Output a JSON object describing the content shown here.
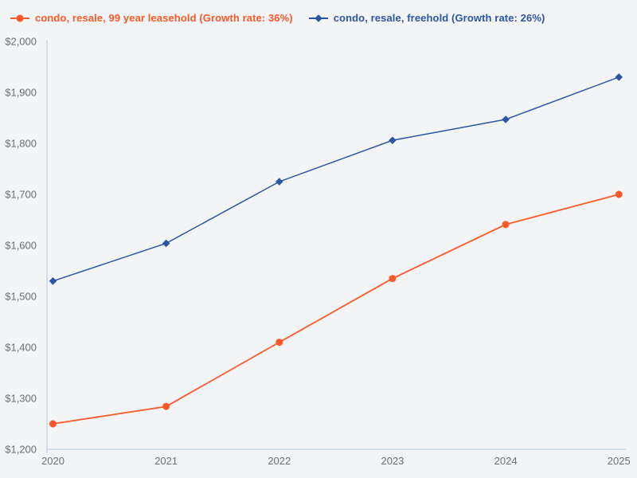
{
  "page": {
    "background": "#f3f4f6"
  },
  "chart_data": {
    "type": "line",
    "title": "",
    "xlabel": "",
    "ylabel": "",
    "categories": [
      "2020",
      "2021",
      "2022",
      "2023",
      "2024",
      "2025"
    ],
    "series": [
      {
        "id": "leasehold",
        "name": "condo, resale, 99 year leasehold (Growth rate: 36%)",
        "values": [
          1250,
          1284,
          1410,
          1535,
          1641,
          1700
        ],
        "color": "#fb5a28",
        "marker": "circle"
      },
      {
        "id": "freehold",
        "name": "condo, resale, freehold (Growth rate: 26%)",
        "values": [
          1530,
          1604,
          1725,
          1806,
          1847,
          1930
        ],
        "color": "#2a56a4",
        "marker": "diamond"
      }
    ],
    "ylim": [
      1200,
      2000
    ],
    "ytick_step": 100,
    "ytick_labels": [
      "$1,200",
      "$1,300",
      "$1,400",
      "$1,500",
      "$1,600",
      "$1,700",
      "$1,800",
      "$1,900",
      "$2,000"
    ],
    "grid": false,
    "legend_position": "top-left",
    "axis_color": "#c6d0e6",
    "tick_label_color": "#6d7078"
  }
}
